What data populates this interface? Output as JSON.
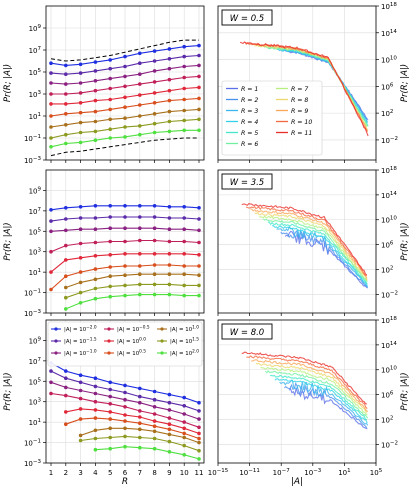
{
  "chart_data": {
    "type": "line",
    "rows": 3,
    "cols": 2,
    "left_ylabel": "Pr(R; |A|)",
    "right_ylabel": "Pr(R; |A|)",
    "left_xlabel": "R",
    "right_xlabel": "|A|",
    "left_xticks": [
      "1",
      "2",
      "3",
      "4",
      "5",
      "6",
      "7",
      "8",
      "9",
      "10",
      "11"
    ],
    "left_ytick_exponents": [
      -3,
      -1,
      1,
      3,
      5,
      7,
      9
    ],
    "left_ylim_log10": [
      -3,
      11
    ],
    "right_xtick_exponents": [
      -15,
      -11,
      -7,
      -3,
      1,
      5
    ],
    "right_xlim_log10": [
      -15,
      5
    ],
    "right_ytick_exponents": [
      -2,
      2,
      6,
      10,
      14,
      18
    ],
    "right_ylim_log10": [
      -5,
      18
    ],
    "panel_titles": [
      "W = 0.5",
      "W = 3.5",
      "W = 8.0"
    ],
    "left_series": [
      {
        "name": "|A| = 10^-2.0",
        "color": "#1f2fe0"
      },
      {
        "name": "|A| = 10^-1.5",
        "color": "#5a2aa8"
      },
      {
        "name": "|A| = 10^-1.0",
        "color": "#8a2080"
      },
      {
        "name": "|A| = 10^-0.5",
        "color": "#c0205a"
      },
      {
        "name": "|A| = 10^0.0",
        "color": "#e0283a"
      },
      {
        "name": "|A| = 10^0.5",
        "color": "#d84e1c"
      },
      {
        "name": "|A| = 10^1.0",
        "color": "#a8701c"
      },
      {
        "name": "|A| = 10^1.5",
        "color": "#8c9a20"
      },
      {
        "name": "|A| = 10^2.0",
        "color": "#4fe040"
      }
    ],
    "right_series": [
      {
        "name": "R = 1",
        "color": "#5a6fe8"
      },
      {
        "name": "R = 2",
        "color": "#4a90ee"
      },
      {
        "name": "R = 3",
        "color": "#3cb4ee"
      },
      {
        "name": "R = 4",
        "color": "#30d4e6"
      },
      {
        "name": "R = 5",
        "color": "#40e8c8"
      },
      {
        "name": "R = 6",
        "color": "#70f0a0"
      },
      {
        "name": "R = 7",
        "color": "#b8f080"
      },
      {
        "name": "R = 8",
        "color": "#ecd86c"
      },
      {
        "name": "R = 9",
        "color": "#f8a858"
      },
      {
        "name": "R = 10",
        "color": "#f46a40"
      },
      {
        "name": "R = 11",
        "color": "#e8302a"
      }
    ],
    "panels_left": [
      {
        "W": 0.5,
        "bounds_upper_log10": [
          6.2,
          6.0,
          6.1,
          6.3,
          6.5,
          6.8,
          7.1,
          7.4,
          7.7,
          7.9,
          7.9
        ],
        "bounds_lower_log10": [
          -2.6,
          -2.3,
          -2.2,
          -2.0,
          -1.8,
          -1.6,
          -1.4,
          -1.2,
          -1.1,
          -1.0,
          -1.0
        ],
        "series_log10": [
          [
            5.8,
            5.6,
            5.7,
            5.9,
            6.1,
            6.4,
            6.7,
            6.9,
            7.1,
            7.3,
            7.4
          ],
          [
            4.9,
            4.8,
            4.9,
            5.1,
            5.3,
            5.5,
            5.8,
            6.0,
            6.2,
            6.4,
            6.5
          ],
          [
            4.0,
            3.9,
            4.0,
            4.2,
            4.4,
            4.6,
            4.8,
            5.1,
            5.3,
            5.5,
            5.6
          ],
          [
            3.0,
            3.0,
            3.1,
            3.3,
            3.5,
            3.7,
            3.9,
            4.1,
            4.3,
            4.5,
            4.6
          ],
          [
            2.1,
            2.1,
            2.2,
            2.4,
            2.5,
            2.7,
            2.9,
            3.1,
            3.3,
            3.5,
            3.6
          ],
          [
            1.0,
            1.2,
            1.3,
            1.4,
            1.6,
            1.8,
            2.0,
            2.2,
            2.4,
            2.5,
            2.6
          ],
          [
            0.0,
            0.2,
            0.4,
            0.5,
            0.7,
            0.8,
            1.0,
            1.2,
            1.4,
            1.5,
            1.6
          ],
          [
            -1.0,
            -0.7,
            -0.5,
            -0.4,
            -0.2,
            0.0,
            0.1,
            0.3,
            0.5,
            0.6,
            0.7
          ],
          [
            -1.8,
            -1.5,
            -1.4,
            -1.2,
            -1.0,
            -0.9,
            -0.7,
            -0.5,
            -0.4,
            -0.3,
            -0.3
          ]
        ]
      },
      {
        "W": 3.5,
        "series_log10": [
          [
            7.1,
            7.3,
            7.4,
            7.5,
            7.5,
            7.5,
            7.5,
            7.5,
            7.4,
            7.4,
            7.3
          ],
          [
            6.0,
            6.2,
            6.3,
            6.3,
            6.4,
            6.4,
            6.4,
            6.4,
            6.3,
            6.3,
            6.2
          ],
          [
            5.0,
            5.1,
            5.2,
            5.2,
            5.3,
            5.3,
            5.3,
            5.3,
            5.2,
            5.2,
            5.1
          ],
          [
            3.0,
            3.6,
            3.8,
            3.9,
            4.0,
            4.0,
            4.1,
            4.1,
            4.0,
            4.0,
            3.9
          ],
          [
            1.0,
            2.2,
            2.4,
            2.6,
            2.7,
            2.8,
            2.8,
            2.8,
            2.8,
            2.8,
            2.7
          ],
          [
            -0.7,
            0.6,
            1.0,
            1.3,
            1.5,
            1.6,
            1.6,
            1.7,
            1.7,
            1.6,
            1.6
          ],
          [
            null,
            -0.5,
            0.0,
            0.3,
            0.6,
            0.7,
            0.8,
            0.8,
            0.8,
            0.8,
            0.7
          ],
          [
            null,
            -1.5,
            -1.0,
            -0.6,
            -0.4,
            -0.3,
            -0.2,
            -0.2,
            -0.2,
            -0.3,
            -0.3
          ],
          [
            null,
            -2.6,
            -2.0,
            -1.6,
            -1.4,
            -1.3,
            -1.2,
            -1.2,
            -1.2,
            -1.3,
            -1.3
          ]
        ]
      },
      {
        "W": 8.0,
        "series_log10": [
          [
            6.8,
            6.0,
            5.6,
            5.3,
            4.9,
            4.6,
            4.3,
            4.0,
            3.7,
            3.4,
            2.9
          ],
          [
            6.0,
            5.3,
            4.9,
            4.5,
            4.2,
            3.9,
            3.5,
            3.2,
            2.9,
            2.6,
            2.1
          ],
          [
            4.9,
            4.4,
            4.1,
            3.8,
            3.5,
            3.2,
            2.9,
            2.5,
            2.2,
            1.8,
            1.3
          ],
          [
            3.8,
            3.6,
            3.3,
            3.0,
            2.8,
            2.5,
            2.1,
            1.8,
            1.4,
            1.0,
            0.5
          ],
          [
            null,
            2.0,
            2.3,
            2.2,
            2.0,
            1.7,
            1.5,
            1.1,
            0.8,
            0.4,
            -0.1
          ],
          [
            null,
            0.8,
            1.3,
            1.4,
            1.3,
            1.1,
            0.9,
            0.6,
            0.3,
            -0.1,
            -0.6
          ],
          [
            null,
            null,
            -0.3,
            0.2,
            0.4,
            0.4,
            0.3,
            0.1,
            -0.2,
            -0.5,
            -1.0
          ],
          [
            null,
            null,
            -0.8,
            -0.6,
            -0.5,
            -0.4,
            -0.5,
            -0.6,
            -0.9,
            -1.3,
            -1.8
          ],
          [
            null,
            null,
            null,
            -1.7,
            -1.6,
            -1.4,
            -1.5,
            -1.6,
            -1.9,
            -2.2,
            -2.6
          ]
        ]
      }
    ]
  }
}
